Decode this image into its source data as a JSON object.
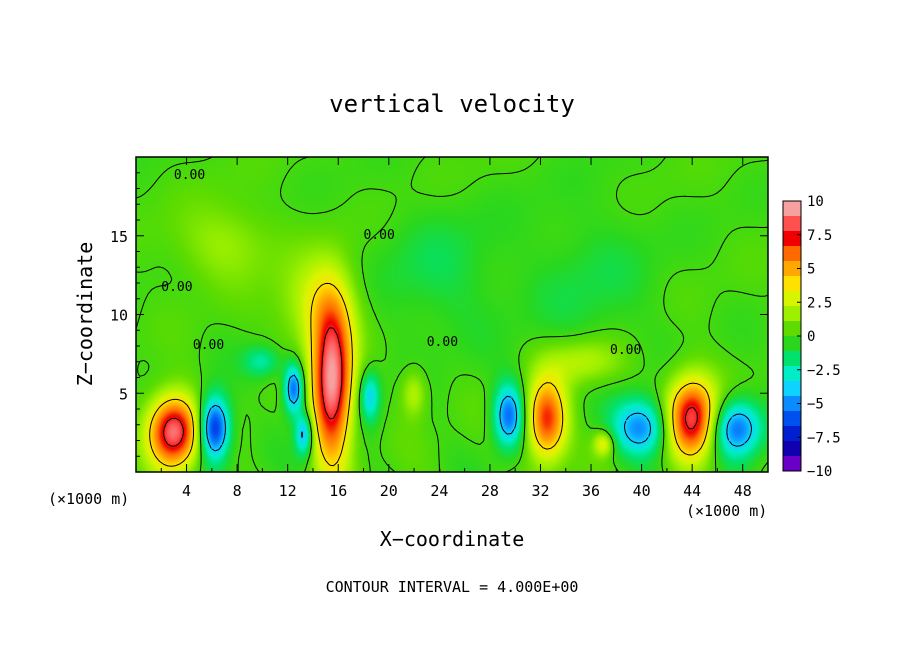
{
  "chart_data": {
    "type": "heatmap",
    "title": "vertical velocity",
    "xlabel": "X−coordinate",
    "ylabel": "Z−coordinate",
    "x_unit_left": "(×1000 m)",
    "x_unit_right": "(×1000 m)",
    "footer": "CONTOUR INTERVAL = 4.000E+00",
    "xlim": [
      0,
      50
    ],
    "ylim": [
      0,
      20
    ],
    "x_ticks": [
      "4",
      "8",
      "12",
      "16",
      "20",
      "24",
      "28",
      "32",
      "36",
      "40",
      "44",
      "48"
    ],
    "y_ticks": [
      "5",
      "10",
      "15"
    ],
    "contour_labels": [
      "0.00",
      "0.00",
      "0.00",
      "0.00",
      "0.00",
      "0.00"
    ],
    "colorbar": {
      "ticks": [
        "10",
        "7.5",
        "5",
        "2.5",
        "0",
        "−2.5",
        "−5",
        "−7.5",
        "−10"
      ],
      "min": -10,
      "max": 10,
      "colors": [
        "#f7a0a0",
        "#ff5050",
        "#f00000",
        "#ff6a00",
        "#ffa800",
        "#ffe100",
        "#d8f500",
        "#9ef000",
        "#5edc00",
        "#2ad71e",
        "#00e16e",
        "#00edc8",
        "#0fd2ff",
        "#0a8cff",
        "#0050f0",
        "#0020d0",
        "#1000b0",
        "#6a00c8"
      ]
    },
    "features": [
      {
        "kind": "updraft",
        "x": 3.0,
        "z": 2.6,
        "rx": 2.0,
        "rz": 2.3,
        "peak": 9.5
      },
      {
        "kind": "downdraft",
        "x": 6.2,
        "z": 2.8,
        "rx": 1.2,
        "rz": 2.0,
        "peak": -8.0
      },
      {
        "kind": "downdraft",
        "x": 12.5,
        "z": 5.3,
        "rx": 0.8,
        "rz": 1.6,
        "peak": -6.5
      },
      {
        "kind": "downdraft",
        "x": 13.3,
        "z": 2.4,
        "rx": 0.7,
        "rz": 1.4,
        "peak": -5.0
      },
      {
        "kind": "updraft",
        "x": 15.5,
        "z": 5.5,
        "rx": 1.6,
        "rz": 5.0,
        "peak": 10.0
      },
      {
        "kind": "downdraft",
        "x": 18.5,
        "z": 4.8,
        "rx": 0.8,
        "rz": 1.6,
        "peak": -4.0
      },
      {
        "kind": "downdraft",
        "x": 29.5,
        "z": 3.6,
        "rx": 1.2,
        "rz": 2.0,
        "peak": -6.0
      },
      {
        "kind": "updraft",
        "x": 32.5,
        "z": 3.3,
        "rx": 1.6,
        "rz": 2.6,
        "peak": 7.5
      },
      {
        "kind": "updraft",
        "x": 37.0,
        "z": 1.8,
        "rx": 0.8,
        "rz": 0.8,
        "peak": 3.5
      },
      {
        "kind": "downdraft",
        "x": 40.0,
        "z": 2.8,
        "rx": 2.2,
        "rz": 1.8,
        "peak": -5.5
      },
      {
        "kind": "updraft",
        "x": 44.0,
        "z": 3.4,
        "rx": 2.0,
        "rz": 2.6,
        "peak": 9.0
      },
      {
        "kind": "downdraft",
        "x": 47.5,
        "z": 2.8,
        "rx": 2.0,
        "rz": 1.8,
        "peak": -6.0
      },
      {
        "kind": "updraft",
        "x": 14.5,
        "z": 10.5,
        "rx": 3.0,
        "rz": 3.0,
        "peak": 3.0
      },
      {
        "kind": "updraft",
        "x": 7.0,
        "z": 14.5,
        "rx": 4.0,
        "rz": 2.5,
        "peak": 1.8
      },
      {
        "kind": "downdraft",
        "x": 24.0,
        "z": 12.5,
        "rx": 5.0,
        "rz": 4.0,
        "peak": -1.2
      },
      {
        "kind": "downdraft",
        "x": 36.0,
        "z": 12.0,
        "rx": 5.0,
        "rz": 5.0,
        "peak": -1.0
      },
      {
        "kind": "updraft",
        "x": 35.5,
        "z": 7.0,
        "rx": 3.0,
        "rz": 1.5,
        "peak": 2.5
      },
      {
        "kind": "downdraft",
        "x": 10.0,
        "z": 7.0,
        "rx": 1.5,
        "rz": 1.0,
        "peak": -2.5
      },
      {
        "kind": "updraft",
        "x": 22.0,
        "z": 5.0,
        "rx": 1.0,
        "rz": 1.5,
        "peak": 2.5
      }
    ]
  }
}
